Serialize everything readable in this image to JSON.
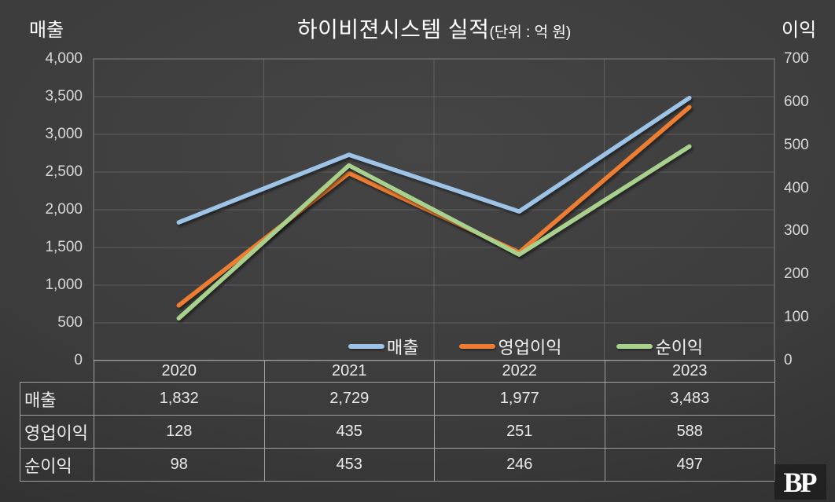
{
  "chart_data": {
    "type": "line",
    "title": "하이비젼시스템 실적",
    "unit_note": "(단위 : 억 원)",
    "categories": [
      "2020",
      "2021",
      "2022",
      "2023"
    ],
    "series": [
      {
        "name": "매출",
        "axis": "left",
        "color": "#9DC3E6",
        "values": [
          1832,
          2729,
          1977,
          3483
        ]
      },
      {
        "name": "영업이익",
        "axis": "right",
        "color": "#ED7D31",
        "values": [
          128,
          435,
          251,
          588
        ]
      },
      {
        "name": "순이익",
        "axis": "right",
        "color": "#A9D18E",
        "values": [
          98,
          453,
          246,
          497
        ]
      }
    ],
    "left_axis": {
      "title": "매출",
      "range": [
        0,
        4000
      ],
      "ticks": [
        "4,000",
        "3,500",
        "3,000",
        "2,500",
        "2,000",
        "1,500",
        "1,000",
        "500",
        "0"
      ]
    },
    "right_axis": {
      "title": "이익",
      "range": [
        0,
        700
      ],
      "ticks": [
        "700",
        "600",
        "500",
        "400",
        "300",
        "200",
        "100",
        "0"
      ]
    },
    "grid": true,
    "legend_position": "bottom-inside"
  },
  "table": {
    "year_header": [
      "2020",
      "2021",
      "2022",
      "2023"
    ],
    "rows": [
      {
        "label": "매출",
        "values": [
          "1,832",
          "2,729",
          "1,977",
          "3,483"
        ]
      },
      {
        "label": "영업이익",
        "values": [
          "128",
          "435",
          "251",
          "588"
        ]
      },
      {
        "label": "순이익",
        "values": [
          "98",
          "453",
          "246",
          "497"
        ]
      }
    ]
  },
  "logo": {
    "text": "BP"
  },
  "colors": {
    "revenue_line": "#9DC3E6",
    "operating_profit_line": "#ED7D31",
    "net_profit_line": "#A9D18E",
    "gridline": "#5f5f5f",
    "plot_border": "#7e7e7e",
    "table_border": "#a0a0a0",
    "text": "#ffffff"
  }
}
